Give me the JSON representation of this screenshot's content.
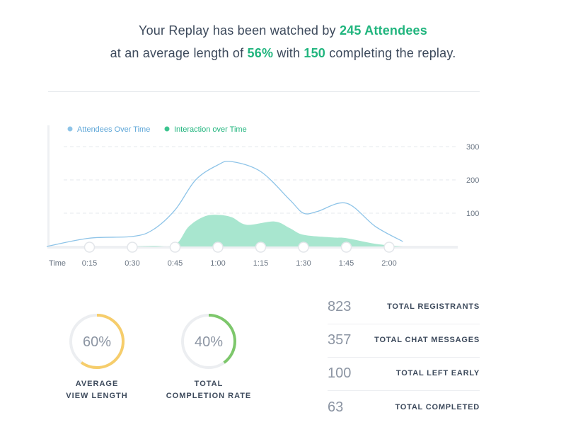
{
  "summary": {
    "line1_prefix": "Your Replay has been watched by ",
    "line1_highlight": "245 Attendees",
    "line2_prefix": "at an average length of ",
    "line2_percent": "56%",
    "line2_mid": " with ",
    "line2_count": "150",
    "line2_suffix": " completing the replay."
  },
  "colors": {
    "accent": "#21b57e",
    "attendees": "#8ec4e8",
    "interaction": "#a8e6cf",
    "interaction_dot": "#3cc48f",
    "yellow": "#f6cd6b",
    "green": "#7dc76b"
  },
  "chart_data": {
    "type": "area",
    "legend": [
      "Attendees Over Time",
      "Interaction over Time"
    ],
    "xlabel": "Time",
    "x_ticks": [
      "0:15",
      "0:30",
      "0:45",
      "1:00",
      "1:15",
      "1:30",
      "1:45",
      "2:00"
    ],
    "y_ticks": [
      "300",
      "200",
      "100"
    ],
    "ylim": [
      0,
      300
    ],
    "series": [
      {
        "name": "Attendees Over Time",
        "type": "line",
        "x": [
          0,
          0.25,
          0.5,
          0.62,
          0.75,
          0.87,
          1.0,
          1.08,
          1.25,
          1.42,
          1.5,
          1.58,
          1.75,
          1.92,
          2.08
        ],
        "values": [
          0,
          25,
          30,
          50,
          110,
          200,
          245,
          255,
          225,
          140,
          100,
          105,
          130,
          60,
          15
        ]
      },
      {
        "name": "Interaction over Time",
        "type": "area",
        "x": [
          0.5,
          0.62,
          0.75,
          0.83,
          0.92,
          1.0,
          1.08,
          1.17,
          1.33,
          1.42,
          1.5,
          1.67,
          1.75,
          1.92,
          2.08
        ],
        "values": [
          0,
          2,
          5,
          60,
          90,
          95,
          88,
          65,
          75,
          55,
          35,
          27,
          25,
          8,
          0
        ]
      }
    ]
  },
  "metrics": [
    {
      "value": "60%",
      "line1": "AVERAGE",
      "line2": "VIEW LENGTH",
      "fraction": 0.6,
      "color": "#f6cd6b"
    },
    {
      "value": "40%",
      "line1": "TOTAL",
      "line2": "COMPLETION RATE",
      "fraction": 0.4,
      "color": "#7dc76b"
    }
  ],
  "stats": [
    {
      "value": "823",
      "label": "TOTAL REGISTRANTS"
    },
    {
      "value": "357",
      "label": "TOTAL CHAT MESSAGES"
    },
    {
      "value": "100",
      "label": "TOTAL LEFT EARLY"
    },
    {
      "value": "63",
      "label": "TOTAL COMPLETED"
    }
  ]
}
